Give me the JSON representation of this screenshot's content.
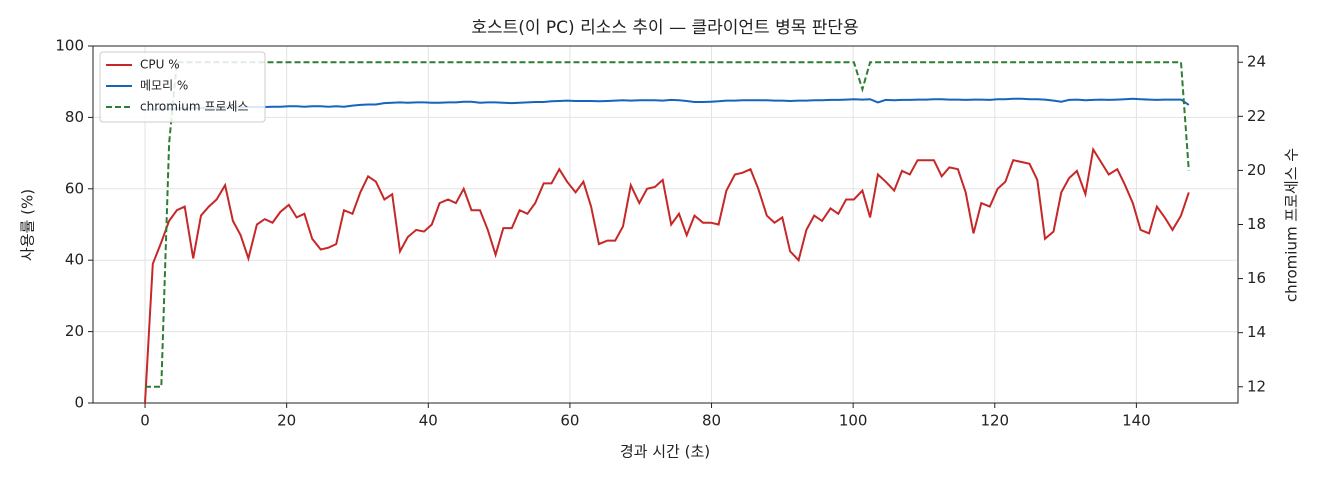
{
  "chart_data": {
    "type": "line",
    "title": "호스트(이 PC) 리소스 추이 — 클라이언트 병목 판단용",
    "x_label": "경과 시간 (초)",
    "y_label": "사용률 (%)",
    "y2_label": "chromium 프로세스 수",
    "xlim": [
      -7.35,
      154.35
    ],
    "xticks": [
      0,
      20,
      40,
      60,
      80,
      100,
      120,
      140
    ],
    "ylim": [
      0,
      100
    ],
    "yticks": [
      0,
      20,
      40,
      60,
      80,
      100
    ],
    "y2lim": [
      11.4,
      24.6
    ],
    "y2ticks": [
      12,
      14,
      16,
      18,
      20,
      22,
      24
    ],
    "grid": true,
    "legend": "upper left",
    "x": [
      0,
      1.1,
      2.3,
      3.4,
      4.5,
      5.6,
      6.8,
      7.9,
      9,
      10.1,
      11.3,
      12.4,
      13.5,
      14.6,
      15.8,
      16.9,
      18,
      19.1,
      20.3,
      21.4,
      22.5,
      23.6,
      24.8,
      25.9,
      27,
      28.1,
      29.3,
      30.4,
      31.5,
      32.6,
      33.8,
      34.9,
      36,
      37.1,
      38.3,
      39.4,
      40.5,
      41.6,
      42.8,
      43.9,
      45,
      46.1,
      47.3,
      48.4,
      49.5,
      50.6,
      51.8,
      52.9,
      54,
      55.1,
      56.3,
      57.4,
      58.5,
      59.6,
      60.8,
      61.9,
      63,
      64.1,
      65.3,
      66.4,
      67.5,
      68.6,
      69.8,
      70.9,
      72,
      73.1,
      74.3,
      75.4,
      76.5,
      77.6,
      78.8,
      79.9,
      81,
      82.1,
      83.3,
      84.4,
      85.5,
      86.6,
      87.8,
      88.9,
      90,
      91.1,
      92.3,
      93.4,
      94.5,
      95.6,
      96.8,
      97.9,
      99,
      100.1,
      101.3,
      102.4,
      103.5,
      104.6,
      105.8,
      106.9,
      108,
      109.1,
      110.3,
      111.4,
      112.5,
      113.6,
      114.8,
      115.9,
      117,
      118.1,
      119.3,
      120.4,
      121.5,
      122.6,
      123.8,
      124.9,
      126,
      127.1,
      128.3,
      129.4,
      130.5,
      131.6,
      132.8,
      133.9,
      135,
      136.1,
      137.3,
      138.4,
      139.5,
      140.6,
      141.8,
      142.9,
      144,
      145.1,
      146.3,
      147.4
    ],
    "series": [
      {
        "name": "CPU %",
        "color": "#c62828",
        "linestyle": "solid",
        "values": [
          0,
          39,
          45,
          51,
          54,
          55,
          40.5,
          52.5,
          55,
          57,
          61,
          51,
          47,
          40.5,
          50,
          51.5,
          50.5,
          53.5,
          55.5,
          52,
          53,
          46,
          43,
          43.5,
          44.5,
          54,
          53,
          59,
          63.5,
          62,
          57,
          58.5,
          42.5,
          46.5,
          48.5,
          48,
          50,
          56,
          57,
          56,
          60,
          54,
          54,
          48.5,
          41.5,
          49,
          49,
          54,
          53,
          56,
          61.5,
          61.5,
          65.5,
          62,
          59,
          62,
          55,
          44.5,
          45.5,
          45.5,
          49.5,
          61,
          56,
          60,
          60.5,
          62.5,
          50,
          53,
          47,
          52.5,
          50.5,
          50.5,
          50,
          59.5,
          64,
          64.5,
          65.5,
          60,
          52.5,
          50.5,
          52,
          42.5,
          40,
          48.5,
          52.5,
          51,
          54.5,
          53,
          57,
          57,
          59.5,
          52,
          64,
          62,
          59.5,
          65,
          64,
          68,
          68,
          68,
          63.5,
          66,
          65.5,
          59,
          47.5,
          56,
          55,
          60,
          62,
          68,
          67.5,
          67,
          62.5,
          46,
          48,
          59,
          63,
          65,
          58.5,
          71,
          67.5,
          64,
          65.5,
          61,
          56,
          48.5,
          47.5,
          55,
          52,
          48.5,
          52.5,
          59
        ]
      },
      {
        "name": "메모리 %",
        "color": "#1565c0",
        "linestyle": "solid",
        "values": [
          82.0,
          82.2,
          82.3,
          82.4,
          82.5,
          82.5,
          82.6,
          82.6,
          82.7,
          82.7,
          82.7,
          82.8,
          82.8,
          82.9,
          82.9,
          82.9,
          83.0,
          83.0,
          83.1,
          83.1,
          83.0,
          83.1,
          83.1,
          83.0,
          83.1,
          83.0,
          83.3,
          83.5,
          83.6,
          83.6,
          84.0,
          84.1,
          84.2,
          84.1,
          84.2,
          84.2,
          84.1,
          84.1,
          84.2,
          84.2,
          84.4,
          84.4,
          84.1,
          84.2,
          84.2,
          84.1,
          84.0,
          84.1,
          84.2,
          84.3,
          84.3,
          84.5,
          84.6,
          84.7,
          84.6,
          84.6,
          84.6,
          84.5,
          84.6,
          84.7,
          84.8,
          84.7,
          84.8,
          84.8,
          84.8,
          84.7,
          84.9,
          84.8,
          84.6,
          84.3,
          84.3,
          84.4,
          84.5,
          84.7,
          84.7,
          84.8,
          84.8,
          84.8,
          84.8,
          84.7,
          84.7,
          84.6,
          84.7,
          84.7,
          84.8,
          84.8,
          84.9,
          84.9,
          85.0,
          85.1,
          85.0,
          85.1,
          84.2,
          84.9,
          84.8,
          84.9,
          84.9,
          85.0,
          85.0,
          85.1,
          85.1,
          85.0,
          85.0,
          84.9,
          85.0,
          85.0,
          84.9,
          85.1,
          85.1,
          85.2,
          85.2,
          85.1,
          85.1,
          85.0,
          84.7,
          84.4,
          84.9,
          85.0,
          84.8,
          84.9,
          85.0,
          84.9,
          85.0,
          85.1,
          85.2,
          85.1,
          85.0,
          84.9,
          85.0,
          85.0,
          85.0,
          83.5
        ]
      },
      {
        "name": "chromium 프로세스",
        "color": "#2e7d32",
        "linestyle": "dashed",
        "axis": "y2",
        "values": [
          12,
          12,
          12,
          21,
          24,
          24,
          24,
          24,
          24,
          24,
          24,
          24,
          24,
          24,
          24,
          24,
          24,
          24,
          24,
          24,
          24,
          24,
          24,
          24,
          24,
          24,
          24,
          24,
          24,
          24,
          24,
          24,
          24,
          24,
          24,
          24,
          24,
          24,
          24,
          24,
          24,
          24,
          24,
          24,
          24,
          24,
          24,
          24,
          24,
          24,
          24,
          24,
          24,
          24,
          24,
          24,
          24,
          24,
          24,
          24,
          24,
          24,
          24,
          24,
          24,
          24,
          24,
          24,
          24,
          24,
          24,
          24,
          24,
          24,
          24,
          24,
          24,
          24,
          24,
          24,
          24,
          24,
          24,
          24,
          24,
          24,
          24,
          24,
          24,
          24,
          23,
          24,
          24,
          24,
          24,
          24,
          24,
          24,
          24,
          24,
          24,
          24,
          24,
          24,
          24,
          24,
          24,
          24,
          24,
          24,
          24,
          24,
          24,
          24,
          24,
          24,
          24,
          24,
          24,
          24,
          24,
          24,
          24,
          24,
          24,
          24,
          24,
          24,
          24,
          24,
          24,
          20
        ]
      }
    ]
  }
}
